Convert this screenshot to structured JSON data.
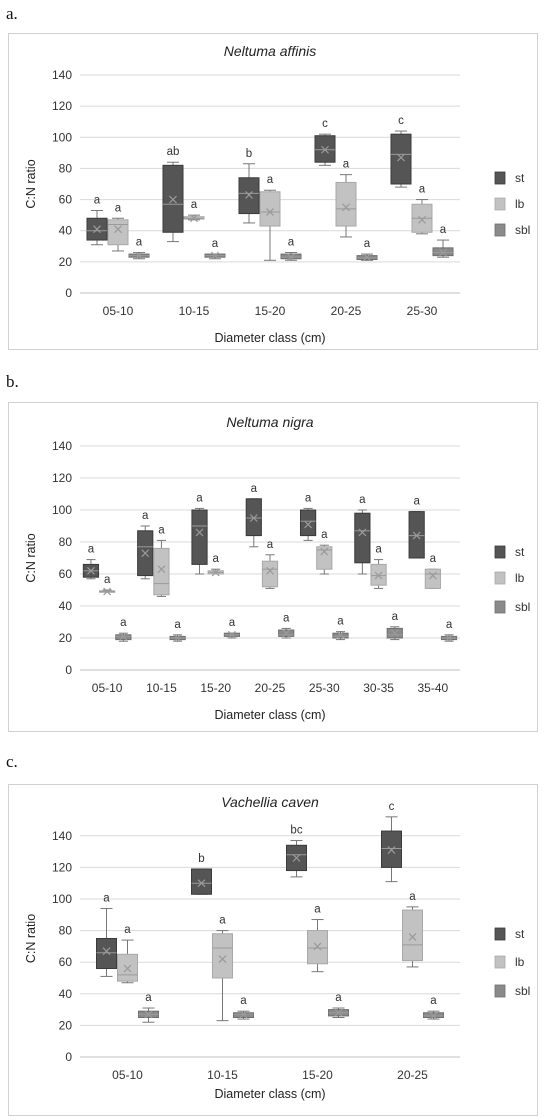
{
  "colors": {
    "st": "#555555",
    "lb": "#c2c2c2",
    "sbl": "#8a8a8a",
    "grid": "#d9d9d9"
  },
  "chart_data": [
    {
      "panel_label": "a.",
      "type": "box",
      "title": "Neltuma affinis",
      "xlabel": "Diameter class (cm)",
      "ylabel": "C:N ratio",
      "ylim": [
        0,
        140
      ],
      "yticks": [
        0,
        20,
        40,
        60,
        80,
        100,
        120,
        140
      ],
      "categories": [
        "05-10",
        "10-15",
        "15-20",
        "20-25",
        "25-30"
      ],
      "legend": [
        "st",
        "lb",
        "sbl"
      ],
      "series": [
        {
          "name": "st",
          "boxes": [
            {
              "min": 31,
              "q1": 34,
              "median": 40,
              "q3": 48,
              "max": 53,
              "mean": 41,
              "label": "a"
            },
            {
              "min": 33,
              "q1": 39,
              "median": 57,
              "q3": 82,
              "max": 84,
              "mean": 60,
              "label": "ab"
            },
            {
              "min": 45,
              "q1": 51,
              "median": 64,
              "q3": 74,
              "max": 83,
              "mean": 63,
              "label": "b"
            },
            {
              "min": 82,
              "q1": 84,
              "median": 92,
              "q3": 101,
              "max": 102,
              "mean": 92,
              "label": "c"
            },
            {
              "min": 68,
              "q1": 70,
              "median": 89,
              "q3": 102,
              "max": 104,
              "mean": 87,
              "label": "c"
            }
          ]
        },
        {
          "name": "lb",
          "boxes": [
            {
              "min": 27,
              "q1": 31,
              "median": 44,
              "q3": 47,
              "max": 48,
              "mean": 41,
              "label": "a"
            },
            {
              "min": 47,
              "q1": 47.5,
              "median": 48,
              "q3": 49,
              "max": 50,
              "mean": 48,
              "label": "a"
            },
            {
              "min": 21,
              "q1": 43,
              "median": 52,
              "q3": 65,
              "max": 66,
              "mean": 52,
              "label": "a"
            },
            {
              "min": 36,
              "q1": 43,
              "median": 54,
              "q3": 71,
              "max": 76,
              "mean": 55,
              "label": "a"
            },
            {
              "min": 38,
              "q1": 39,
              "median": 48,
              "q3": 57,
              "max": 60,
              "mean": 47,
              "label": "a"
            }
          ]
        },
        {
          "name": "sbl",
          "boxes": [
            {
              "min": 22,
              "q1": 23,
              "median": 24,
              "q3": 25,
              "max": 26,
              "mean": 24,
              "label": "a"
            },
            {
              "min": 22,
              "q1": 23,
              "median": 24,
              "q3": 25,
              "max": 25,
              "mean": 24,
              "label": "a"
            },
            {
              "min": 21,
              "q1": 22,
              "median": 23,
              "q3": 25,
              "max": 26,
              "mean": 23,
              "label": "a"
            },
            {
              "min": 21,
              "q1": 21.5,
              "median": 22.5,
              "q3": 24,
              "max": 25,
              "mean": 23,
              "label": "a"
            },
            {
              "min": 23,
              "q1": 24,
              "median": 26,
              "q3": 29,
              "max": 34,
              "mean": 26,
              "label": "a"
            }
          ]
        }
      ]
    },
    {
      "panel_label": "b.",
      "type": "box",
      "title": "Neltuma nigra",
      "xlabel": "Diameter class (cm)",
      "ylabel": "C:N ratio",
      "ylim": [
        0,
        140
      ],
      "yticks": [
        0,
        20,
        40,
        60,
        80,
        100,
        120,
        140
      ],
      "categories": [
        "05-10",
        "10-15",
        "15-20",
        "20-25",
        "25-30",
        "30-35",
        "35-40"
      ],
      "legend": [
        "st",
        "lb",
        "sbl"
      ],
      "series": [
        {
          "name": "st",
          "boxes": [
            {
              "min": 57,
              "q1": 58,
              "median": 62,
              "q3": 66,
              "max": 69,
              "mean": 62,
              "label": "a"
            },
            {
              "min": 57,
              "q1": 59,
              "median": 77,
              "q3": 87,
              "max": 90,
              "mean": 73,
              "label": "a"
            },
            {
              "min": 60,
              "q1": 66,
              "median": 90,
              "q3": 100,
              "max": 101,
              "mean": 86,
              "label": "a"
            },
            {
              "min": 77,
              "q1": 84,
              "median": 95,
              "q3": 107,
              "max": 107,
              "mean": 95,
              "label": "a"
            },
            {
              "min": 81,
              "q1": 84,
              "median": 93,
              "q3": 100,
              "max": 101,
              "mean": 91,
              "label": "a"
            },
            {
              "min": 60,
              "q1": 67,
              "median": 87,
              "q3": 98,
              "max": 100,
              "mean": 86,
              "label": "a"
            },
            {
              "min": 70,
              "q1": 70,
              "median": 84,
              "q3": 99,
              "max": 99,
              "mean": 84,
              "label": "a"
            }
          ]
        },
        {
          "name": "lb",
          "boxes": [
            {
              "min": 49,
              "q1": 49,
              "median": 49,
              "q3": 49.5,
              "max": 50,
              "mean": 49,
              "label": "a"
            },
            {
              "min": 46,
              "q1": 47,
              "median": 54,
              "q3": 76,
              "max": 81,
              "mean": 63,
              "label": "a"
            },
            {
              "min": 60,
              "q1": 60,
              "median": 61,
              "q3": 62,
              "max": 63,
              "mean": 61,
              "label": "a"
            },
            {
              "min": 51,
              "q1": 52,
              "median": 63,
              "q3": 68,
              "max": 72,
              "mean": 62,
              "label": "a"
            },
            {
              "min": 60,
              "q1": 63,
              "median": 75,
              "q3": 77,
              "max": 78,
              "mean": 74,
              "label": "a"
            },
            {
              "min": 51,
              "q1": 53,
              "median": 59,
              "q3": 66,
              "max": 69,
              "mean": 59,
              "label": "a"
            },
            {
              "min": 51,
              "q1": 51,
              "median": 60,
              "q3": 63,
              "max": 63,
              "mean": 59,
              "label": "a"
            }
          ]
        },
        {
          "name": "sbl",
          "boxes": [
            {
              "min": 18,
              "q1": 19,
              "median": 21,
              "q3": 22,
              "max": 23,
              "mean": 21,
              "label": "a"
            },
            {
              "min": 18,
              "q1": 19,
              "median": 20,
              "q3": 21,
              "max": 22,
              "mean": 20,
              "label": "a"
            },
            {
              "min": 20,
              "q1": 21,
              "median": 22,
              "q3": 23,
              "max": 23,
              "mean": 22,
              "label": "a"
            },
            {
              "min": 20,
              "q1": 21,
              "median": 22,
              "q3": 25,
              "max": 26,
              "mean": 23,
              "label": "a"
            },
            {
              "min": 19,
              "q1": 20,
              "median": 21,
              "q3": 23,
              "max": 24,
              "mean": 22,
              "label": "a"
            },
            {
              "min": 19,
              "q1": 20,
              "median": 22,
              "q3": 26,
              "max": 27,
              "mean": 23,
              "label": "a"
            },
            {
              "min": 18,
              "q1": 19,
              "median": 20,
              "q3": 21,
              "max": 22,
              "mean": 20,
              "label": "a"
            }
          ]
        }
      ]
    },
    {
      "panel_label": "c.",
      "type": "box",
      "title": "Vachellia caven",
      "xlabel": "Diameter class (cm)",
      "ylabel": "C:N ratio",
      "ylim": [
        0,
        150
      ],
      "yticks": [
        0,
        20,
        40,
        60,
        80,
        100,
        120,
        140
      ],
      "categories": [
        "05-10",
        "10-15",
        "15-20",
        "20-25"
      ],
      "legend": [
        "st",
        "lb",
        "sbl"
      ],
      "series": [
        {
          "name": "st",
          "boxes": [
            {
              "min": 51,
              "q1": 56,
              "median": 66,
              "q3": 75,
              "max": 94,
              "mean": 67,
              "label": "a"
            },
            {
              "min": 103,
              "q1": 103,
              "median": 110,
              "q3": 119,
              "max": 119,
              "mean": 110,
              "label": "b"
            },
            {
              "min": 114,
              "q1": 118,
              "median": 128,
              "q3": 134,
              "max": 137,
              "mean": 126,
              "label": "bc"
            },
            {
              "min": 111,
              "q1": 120,
              "median": 132,
              "q3": 143,
              "max": 152,
              "mean": 131,
              "label": "c"
            }
          ]
        },
        {
          "name": "lb",
          "boxes": [
            {
              "min": 47,
              "q1": 48,
              "median": 52,
              "q3": 65,
              "max": 74,
              "mean": 56,
              "label": "a"
            },
            {
              "min": 23,
              "q1": 50,
              "median": 69,
              "q3": 78,
              "max": 80,
              "mean": 62,
              "label": "a"
            },
            {
              "min": 54,
              "q1": 59,
              "median": 69,
              "q3": 80,
              "max": 87,
              "mean": 70,
              "label": "a"
            },
            {
              "min": 57,
              "q1": 61,
              "median": 71,
              "q3": 93,
              "max": 95,
              "mean": 76,
              "label": "a"
            }
          ]
        },
        {
          "name": "sbl",
          "boxes": [
            {
              "min": 22,
              "q1": 25,
              "median": 27,
              "q3": 29,
              "max": 31,
              "mean": 27,
              "label": "a"
            },
            {
              "min": 24,
              "q1": 25,
              "median": 27,
              "q3": 28,
              "max": 29,
              "mean": 27,
              "label": "a"
            },
            {
              "min": 25,
              "q1": 26,
              "median": 28,
              "q3": 30,
              "max": 31,
              "mean": 28,
              "label": "a"
            },
            {
              "min": 24,
              "q1": 25,
              "median": 26,
              "q3": 28,
              "max": 29,
              "mean": 26,
              "label": "a"
            }
          ]
        }
      ]
    }
  ]
}
